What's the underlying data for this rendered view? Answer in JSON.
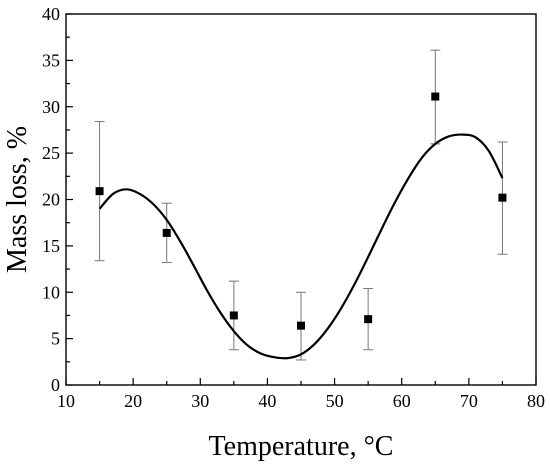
{
  "chart_data": {
    "type": "scatter",
    "title": "",
    "xlabel": "Temperature, °C",
    "ylabel": "Mass loss, %",
    "xlim": [
      10,
      80
    ],
    "ylim": [
      0,
      40
    ],
    "xticks": [
      10,
      20,
      30,
      40,
      50,
      60,
      70,
      80
    ],
    "yticks": [
      0,
      5,
      10,
      15,
      20,
      25,
      30,
      35,
      40
    ],
    "grid": false,
    "legend": "none",
    "series": [
      {
        "marker": "square",
        "color": "#000000",
        "points": [
          {
            "x": 15,
            "y": 20.9,
            "err_low": 13.4,
            "err_high": 28.4
          },
          {
            "x": 25,
            "y": 16.4,
            "err_low": 13.2,
            "err_high": 19.6
          },
          {
            "x": 35,
            "y": 7.5,
            "err_low": 3.8,
            "err_high": 11.2
          },
          {
            "x": 45,
            "y": 6.4,
            "err_low": 2.7,
            "err_high": 10.0
          },
          {
            "x": 55,
            "y": 7.1,
            "err_low": 3.8,
            "err_high": 10.4
          },
          {
            "x": 65,
            "y": 31.1,
            "err_low": 26.0,
            "err_high": 36.1
          },
          {
            "x": 75,
            "y": 20.2,
            "err_low": 14.1,
            "err_high": 26.2
          }
        ]
      }
    ],
    "fit_curve": {
      "color": "#000000",
      "points": [
        [
          15,
          19.0
        ],
        [
          17,
          20.6
        ],
        [
          19,
          21.1
        ],
        [
          21,
          20.6
        ],
        [
          23,
          19.5
        ],
        [
          25,
          17.8
        ],
        [
          27,
          15.5
        ],
        [
          29,
          12.9
        ],
        [
          31,
          10.2
        ],
        [
          33,
          7.8
        ],
        [
          35,
          5.8
        ],
        [
          37,
          4.3
        ],
        [
          39,
          3.4
        ],
        [
          41,
          3.0
        ],
        [
          43,
          2.9
        ],
        [
          45,
          3.3
        ],
        [
          47,
          4.4
        ],
        [
          49,
          6.1
        ],
        [
          51,
          8.3
        ],
        [
          53,
          10.9
        ],
        [
          55,
          13.8
        ],
        [
          57,
          16.8
        ],
        [
          59,
          19.7
        ],
        [
          61,
          22.3
        ],
        [
          63,
          24.5
        ],
        [
          65,
          26.0
        ],
        [
          67,
          26.8
        ],
        [
          69,
          27.0
        ],
        [
          71,
          26.7
        ],
        [
          73,
          25.2
        ],
        [
          75,
          22.3
        ]
      ]
    }
  }
}
